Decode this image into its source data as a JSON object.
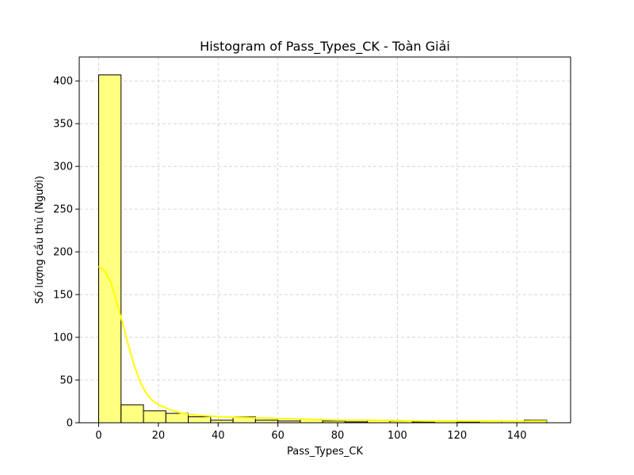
{
  "chart_data": {
    "type": "bar",
    "title": "Histogram of Pass_Types_CK - Toàn Giải",
    "xlabel": "Pass_Types_CK",
    "ylabel": "Số lượng cầu thủ (Người)",
    "xlim": [
      -6.5,
      158
    ],
    "ylim": [
      0,
      428
    ],
    "xticks": [
      0,
      20,
      40,
      60,
      80,
      100,
      120,
      140
    ],
    "yticks": [
      0,
      50,
      100,
      150,
      200,
      250,
      300,
      350,
      400
    ],
    "bin_edges": [
      0,
      7.5,
      15,
      22.5,
      30,
      37.5,
      45,
      52.5,
      60,
      67.5,
      75,
      82.5,
      90,
      97.5,
      105,
      112.5,
      120,
      127.5,
      135,
      142.5,
      150
    ],
    "values": [
      407,
      21,
      14,
      11,
      7,
      3,
      7,
      3,
      2,
      4,
      2,
      1,
      3,
      2,
      1,
      2,
      1,
      2,
      0,
      3
    ],
    "kde": {
      "x": [
        0,
        2,
        4,
        6,
        8,
        10,
        12,
        14,
        16,
        18,
        20,
        24,
        28,
        32,
        36,
        40,
        50,
        60,
        70,
        80,
        90,
        100,
        110,
        120,
        130,
        140,
        145,
        150
      ],
      "y": [
        183,
        178,
        165,
        142,
        117,
        90,
        66,
        47,
        34,
        26,
        21,
        15,
        11,
        9,
        8,
        7,
        6,
        5,
        4,
        3,
        3,
        2.5,
        2,
        2,
        2,
        1.5,
        2,
        2
      ]
    },
    "grid": true,
    "colors": {
      "bar_fill": "#ffff80",
      "bar_edge": "#000000",
      "kde_line": "#ffff00",
      "grid": "#cccccc"
    }
  }
}
